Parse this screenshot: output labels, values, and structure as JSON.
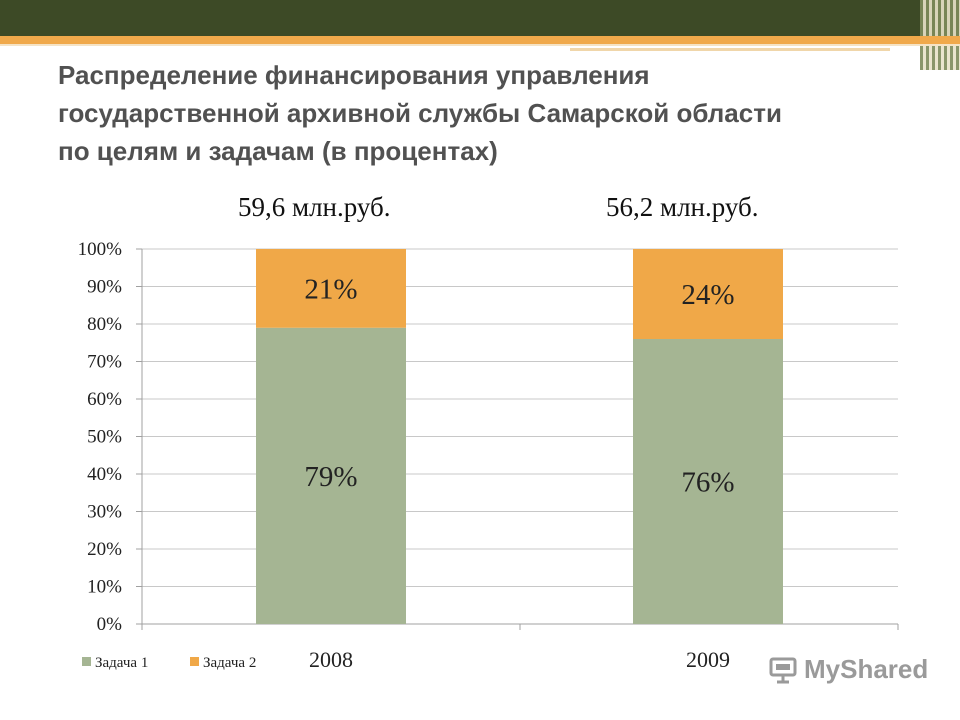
{
  "title": "Распределение финансирования управления государственной архивной службы Самарской области по целям и задачам (в процентах)",
  "amounts": [
    "59,6 млн.руб.",
    "56,2 млн.руб."
  ],
  "logo_text": "MyShared",
  "colors": {
    "task1": "#a5b593",
    "task2": "#f0a848",
    "header": "#3d4a26",
    "accent": "#f0a94b"
  },
  "chart_data": {
    "type": "bar",
    "stacked": true,
    "categories": [
      "2008",
      "2009"
    ],
    "series": [
      {
        "name": "Задача 1",
        "values": [
          79,
          76
        ],
        "labels": [
          "79%",
          "76%"
        ]
      },
      {
        "name": "Задача 2",
        "values": [
          21,
          24
        ],
        "labels": [
          "21%",
          "24%"
        ]
      }
    ],
    "yticks": [
      "0%",
      "10%",
      "20%",
      "30%",
      "40%",
      "50%",
      "60%",
      "70%",
      "80%",
      "90%",
      "100%"
    ],
    "ylim": [
      0,
      100
    ],
    "grid": true,
    "legend_position": "bottom-left"
  }
}
